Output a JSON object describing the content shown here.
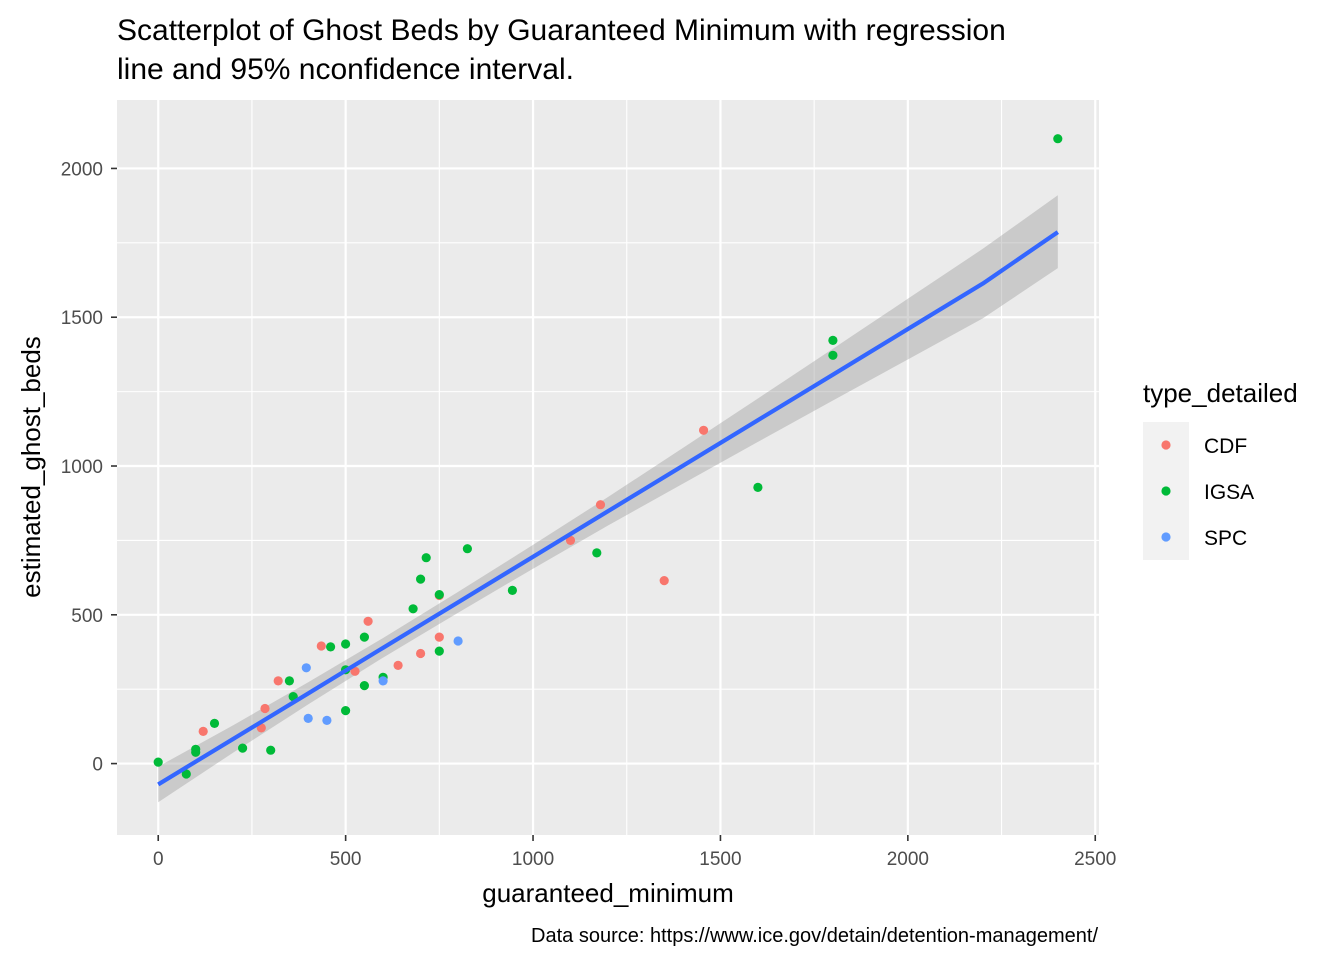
{
  "chart_data": {
    "type": "scatter",
    "title_lines": [
      "Scatterplot of Ghost Beds by Guaranteed Minimum with regression",
      "line and 95% nconfidence interval."
    ],
    "xlabel": "guaranteed_minimum",
    "ylabel": "estimated_ghost_beds",
    "caption": "Data source: https://www.ice.gov/detain/detention-management/",
    "xlim": [
      -110,
      2510
    ],
    "ylim": [
      -240,
      2230
    ],
    "x_ticks": [
      0,
      500,
      1000,
      1500,
      2000,
      2500
    ],
    "x_tick_labels": [
      "0",
      "500",
      "1000",
      "1500",
      "2000",
      "2500"
    ],
    "y_ticks": [
      0,
      500,
      1000,
      1500,
      2000
    ],
    "y_tick_labels": [
      "0",
      "500",
      "1000",
      "1500",
      "2000"
    ],
    "legend": {
      "title": "type_detailed",
      "position": "right",
      "entries": [
        {
          "label": "CDF",
          "color": "#F8766D"
        },
        {
          "label": "IGSA",
          "color": "#00BA38"
        },
        {
          "label": "SPC",
          "color": "#619CFF"
        }
      ]
    },
    "series": [
      {
        "name": "CDF",
        "color": "#F8766D",
        "points": [
          [
            120,
            108
          ],
          [
            285,
            185
          ],
          [
            320,
            278
          ],
          [
            275,
            120
          ],
          [
            435,
            395
          ],
          [
            525,
            310
          ],
          [
            560,
            478
          ],
          [
            640,
            330
          ],
          [
            700,
            370
          ],
          [
            750,
            425
          ],
          [
            750,
            565
          ],
          [
            1100,
            750
          ],
          [
            1180,
            870
          ],
          [
            1350,
            615
          ],
          [
            1455,
            1120
          ]
        ]
      },
      {
        "name": "IGSA",
        "color": "#00BA38",
        "points": [
          [
            0,
            5
          ],
          [
            75,
            -35
          ],
          [
            100,
            38
          ],
          [
            100,
            48
          ],
          [
            150,
            135
          ],
          [
            225,
            52
          ],
          [
            300,
            45
          ],
          [
            350,
            278
          ],
          [
            360,
            225
          ],
          [
            460,
            392
          ],
          [
            500,
            315
          ],
          [
            500,
            178
          ],
          [
            500,
            402
          ],
          [
            550,
            262
          ],
          [
            550,
            425
          ],
          [
            600,
            290
          ],
          [
            680,
            520
          ],
          [
            700,
            620
          ],
          [
            715,
            692
          ],
          [
            750,
            378
          ],
          [
            750,
            568
          ],
          [
            825,
            722
          ],
          [
            945,
            582
          ],
          [
            1170,
            708
          ],
          [
            1600,
            928
          ],
          [
            1800,
            1422
          ],
          [
            1800,
            1372
          ],
          [
            2400,
            2100
          ]
        ]
      },
      {
        "name": "SPC",
        "color": "#619CFF",
        "points": [
          [
            395,
            322
          ],
          [
            400,
            152
          ],
          [
            450,
            145
          ],
          [
            600,
            278
          ],
          [
            800,
            412
          ]
        ]
      }
    ],
    "regression": {
      "color": "#3366FF",
      "ribbon_color": "#999999",
      "x": [
        0,
        200,
        400,
        600,
        800,
        1000,
        1200,
        1400,
        1600,
        1800,
        2000,
        2200,
        2400
      ],
      "fit": [
        -70,
        83,
        236,
        389,
        542,
        695,
        848,
        1001,
        1154,
        1307,
        1460,
        1613,
        1786
      ],
      "lower": [
        -130,
        37,
        199,
        356,
        507,
        655,
        800,
        941,
        1081,
        1220,
        1358,
        1496,
        1665
      ],
      "upper": [
        -10,
        129,
        273,
        422,
        577,
        735,
        896,
        1061,
        1227,
        1394,
        1562,
        1730,
        1910
      ]
    }
  }
}
